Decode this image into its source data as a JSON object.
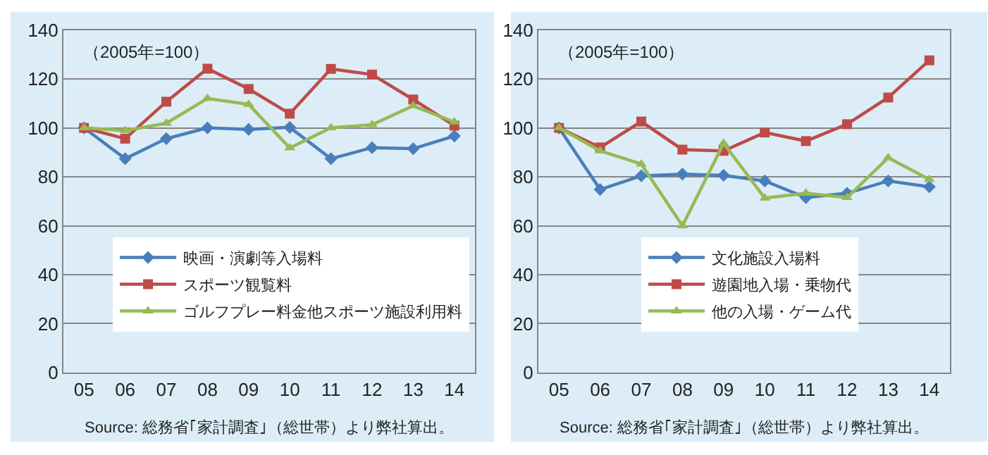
{
  "chart_data": [
    {
      "type": "line",
      "categories": [
        "05",
        "06",
        "07",
        "08",
        "09",
        "10",
        "11",
        "12",
        "13",
        "14"
      ],
      "ylim": [
        0,
        140
      ],
      "yticks": [
        0,
        20,
        40,
        60,
        80,
        100,
        120,
        140
      ],
      "grid": "y",
      "legend": "bottom",
      "annotations": [
        "（2005年=100）",
        "Source: 総務省｢家計調査｣（総世帯）より弊社算出。"
      ],
      "series": [
        {
          "name": "映画・演劇等入場料",
          "color": "#4a7ebb",
          "marker": "diamond",
          "values": [
            100,
            87.4,
            95.6,
            100,
            99.4,
            100.2,
            87.4,
            91.9,
            91.5,
            96.7
          ]
        },
        {
          "name": "スポーツ観覧料",
          "color": "#be4b48",
          "marker": "square",
          "values": [
            100,
            95.6,
            110.7,
            124.2,
            115.9,
            105.8,
            124.1,
            121.8,
            111.6,
            100.9
          ]
        },
        {
          "name": "ゴルフプレー料金他スポーツ施設利用料",
          "color": "#98b954",
          "marker": "triangle",
          "values": [
            100,
            98.9,
            101.9,
            112,
            109.6,
            91.8,
            100,
            101.3,
            109,
            102.4
          ]
        }
      ]
    },
    {
      "type": "line",
      "categories": [
        "05",
        "06",
        "07",
        "08",
        "09",
        "10",
        "11",
        "12",
        "13",
        "14"
      ],
      "ylim": [
        0,
        140
      ],
      "yticks": [
        0,
        20,
        40,
        60,
        80,
        100,
        120,
        140
      ],
      "grid": "y",
      "legend": "bottom",
      "annotations": [
        "（2005年=100）",
        "Source: 総務省｢家計調査｣（総世帯）より弊社算出。"
      ],
      "series": [
        {
          "name": "文化施設入場料",
          "color": "#4a7ebb",
          "marker": "diamond",
          "values": [
            100,
            74.8,
            80.4,
            81.1,
            80.6,
            78.3,
            71.5,
            73.3,
            78.3,
            75.9
          ]
        },
        {
          "name": "遊園地入場・乗物代",
          "color": "#be4b48",
          "marker": "square",
          "values": [
            100,
            92,
            102.6,
            91.1,
            90.6,
            98.1,
            94.6,
            101.5,
            112.4,
            127.6
          ]
        },
        {
          "name": "他の入場・ゲーム代",
          "color": "#98b954",
          "marker": "triangle",
          "values": [
            100,
            90.6,
            85.2,
            60,
            93.7,
            71.3,
            73.3,
            71.5,
            87.8,
            78.9
          ]
        }
      ]
    }
  ]
}
